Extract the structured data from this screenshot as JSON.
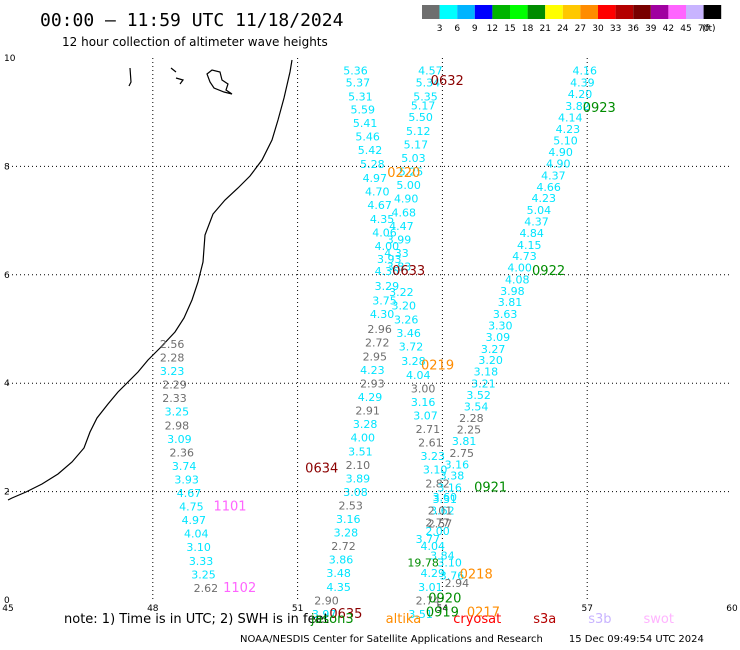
{
  "header": {
    "title": "00:00 – 11:59 UTC 11/18/2024",
    "subtitle": "12 hour collection of altimeter wave heights"
  },
  "legend": {
    "unit": "(ft)",
    "ticks": [
      "3",
      "6",
      "9",
      "12",
      "15",
      "18",
      "21",
      "24",
      "27",
      "30",
      "33",
      "36",
      "39",
      "42",
      "45",
      "70"
    ],
    "colors": [
      "#6e6e6e",
      "#00ffff",
      "#00b4ff",
      "#0000ff",
      "#00b400",
      "#00ff00",
      "#008c00",
      "#ffff00",
      "#ffc800",
      "#ff8c00",
      "#ff0000",
      "#b40000",
      "#780000",
      "#a000a0",
      "#ff64ff",
      "#c8b4ff",
      "#000000"
    ]
  },
  "axes": {
    "x_ticks": [
      "45",
      "48",
      "51",
      "54",
      "57",
      "60"
    ],
    "y_ticks": [
      "0",
      "2",
      "4",
      "6",
      "8",
      "10"
    ],
    "x_range": [
      45,
      60
    ],
    "y_range": [
      0,
      10
    ]
  },
  "colors": {
    "gray": "#6e6e6e",
    "cyan": "#00e5ff",
    "green": "#008c00",
    "darkred": "#8b0000",
    "orange": "#ff8c00",
    "pink": "#ff64ff",
    "lavender": "#b4a0ff"
  },
  "labels": [
    {
      "t": "5.36",
      "x": 52.2,
      "y": 9.7,
      "c": "cyan"
    },
    {
      "t": "5.37",
      "x": 52.25,
      "y": 9.47,
      "c": "cyan"
    },
    {
      "t": "5.31",
      "x": 52.3,
      "y": 9.22,
      "c": "cyan"
    },
    {
      "t": "5.59",
      "x": 52.35,
      "y": 8.98,
      "c": "cyan"
    },
    {
      "t": "5.41",
      "x": 52.4,
      "y": 8.73,
      "c": "cyan"
    },
    {
      "t": "5.46",
      "x": 52.45,
      "y": 8.48,
      "c": "cyan"
    },
    {
      "t": "5.42",
      "x": 52.5,
      "y": 8.23,
      "c": "cyan"
    },
    {
      "t": "5.28",
      "x": 52.55,
      "y": 7.97,
      "c": "cyan"
    },
    {
      "t": "4.97",
      "x": 52.6,
      "y": 7.71,
      "c": "cyan"
    },
    {
      "t": "4.70",
      "x": 52.65,
      "y": 7.46,
      "c": "cyan"
    },
    {
      "t": "4.67",
      "x": 52.7,
      "y": 7.21,
      "c": "cyan"
    },
    {
      "t": "4.35",
      "x": 52.75,
      "y": 6.96,
      "c": "cyan"
    },
    {
      "t": "4.06",
      "x": 52.8,
      "y": 6.71,
      "c": "cyan"
    },
    {
      "t": "4.00",
      "x": 52.85,
      "y": 6.46,
      "c": "cyan"
    },
    {
      "t": "3.93",
      "x": 52.9,
      "y": 6.22,
      "c": "cyan"
    },
    {
      "t": "4.36",
      "x": 52.85,
      "y": 6.0,
      "c": "cyan"
    },
    {
      "t": "3.29",
      "x": 52.85,
      "y": 5.72,
      "c": "cyan"
    },
    {
      "t": "3.75",
      "x": 52.8,
      "y": 5.45,
      "c": "cyan"
    },
    {
      "t": "4.30",
      "x": 52.75,
      "y": 5.2,
      "c": "cyan"
    },
    {
      "t": "2.96",
      "x": 52.7,
      "y": 4.93,
      "c": "gray"
    },
    {
      "t": "2.72",
      "x": 52.65,
      "y": 4.68,
      "c": "gray"
    },
    {
      "t": "2.95",
      "x": 52.6,
      "y": 4.42,
      "c": "gray"
    },
    {
      "t": "4.23",
      "x": 52.55,
      "y": 4.17,
      "c": "cyan"
    },
    {
      "t": "2.93",
      "x": 52.55,
      "y": 3.92,
      "c": "gray"
    },
    {
      "t": "4.29",
      "x": 52.5,
      "y": 3.67,
      "c": "cyan"
    },
    {
      "t": "2.91",
      "x": 52.45,
      "y": 3.42,
      "c": "gray"
    },
    {
      "t": "3.28",
      "x": 52.4,
      "y": 3.17,
      "c": "cyan"
    },
    {
      "t": "4.00",
      "x": 52.35,
      "y": 2.92,
      "c": "cyan"
    },
    {
      "t": "3.51",
      "x": 52.3,
      "y": 2.67,
      "c": "cyan"
    },
    {
      "t": "2.10",
      "x": 52.25,
      "y": 2.42,
      "c": "gray"
    },
    {
      "t": "3.89",
      "x": 52.25,
      "y": 2.17,
      "c": "cyan"
    },
    {
      "t": "3.08",
      "x": 52.2,
      "y": 1.92,
      "c": "cyan"
    },
    {
      "t": "2.53",
      "x": 52.1,
      "y": 1.67,
      "c": "gray"
    },
    {
      "t": "3.16",
      "x": 52.05,
      "y": 1.42,
      "c": "cyan"
    },
    {
      "t": "3.28",
      "x": 52.0,
      "y": 1.17,
      "c": "cyan"
    },
    {
      "t": "2.72",
      "x": 51.95,
      "y": 0.92,
      "c": "gray"
    },
    {
      "t": "3.86",
      "x": 51.9,
      "y": 0.67,
      "c": "cyan"
    },
    {
      "t": "3.48",
      "x": 51.85,
      "y": 0.42,
      "c": "cyan"
    },
    {
      "t": "4.35",
      "x": 51.85,
      "y": 0.17,
      "c": "cyan"
    },
    {
      "t": "2.90",
      "x": 51.6,
      "y": -0.08,
      "c": "gray"
    },
    {
      "t": "3.97",
      "x": 51.55,
      "y": -0.33,
      "c": "cyan"
    },
    {
      "t": "0635",
      "x": 52.0,
      "y": -0.33,
      "c": "darkred",
      "big": true
    },
    {
      "t": "4.57",
      "x": 53.75,
      "y": 9.7,
      "c": "cyan"
    },
    {
      "t": "5.34",
      "x": 53.7,
      "y": 9.47,
      "c": "cyan"
    },
    {
      "t": "5.35",
      "x": 53.65,
      "y": 9.22,
      "c": "cyan"
    },
    {
      "t": "5.17",
      "x": 53.6,
      "y": 9.05,
      "c": "cyan"
    },
    {
      "t": "5.50",
      "x": 53.55,
      "y": 8.84,
      "c": "cyan"
    },
    {
      "t": "5.12",
      "x": 53.5,
      "y": 8.58,
      "c": "cyan"
    },
    {
      "t": "5.17",
      "x": 53.45,
      "y": 8.33,
      "c": "cyan"
    },
    {
      "t": "5.03",
      "x": 53.4,
      "y": 8.08,
      "c": "cyan"
    },
    {
      "t": "5.25",
      "x": 53.35,
      "y": 7.83,
      "c": "cyan"
    },
    {
      "t": "5.00",
      "x": 53.3,
      "y": 7.58,
      "c": "cyan"
    },
    {
      "t": "4.90",
      "x": 53.25,
      "y": 7.33,
      "c": "cyan"
    },
    {
      "t": "4.68",
      "x": 53.2,
      "y": 7.08,
      "c": "cyan"
    },
    {
      "t": "4.47",
      "x": 53.15,
      "y": 6.83,
      "c": "cyan"
    },
    {
      "t": "3.99",
      "x": 53.1,
      "y": 6.58,
      "c": "cyan"
    },
    {
      "t": "4.33",
      "x": 53.05,
      "y": 6.33,
      "c": "cyan"
    },
    {
      "t": "3.83",
      "x": 53.1,
      "y": 6.08,
      "c": "cyan"
    },
    {
      "t": "3.22",
      "x": 53.15,
      "y": 5.61,
      "c": "cyan"
    },
    {
      "t": "3.20",
      "x": 53.2,
      "y": 5.36,
      "c": "cyan"
    },
    {
      "t": "3.26",
      "x": 53.25,
      "y": 5.1,
      "c": "cyan"
    },
    {
      "t": "3.46",
      "x": 53.3,
      "y": 4.85,
      "c": "cyan"
    },
    {
      "t": "3.72",
      "x": 53.35,
      "y": 4.6,
      "c": "cyan"
    },
    {
      "t": "3.28",
      "x": 53.4,
      "y": 4.34,
      "c": "cyan"
    },
    {
      "t": "4.04",
      "x": 53.5,
      "y": 4.08,
      "c": "cyan"
    },
    {
      "t": "3.00",
      "x": 53.6,
      "y": 3.83,
      "c": "gray"
    },
    {
      "t": "3.16",
      "x": 53.6,
      "y": 3.58,
      "c": "cyan"
    },
    {
      "t": "3.07",
      "x": 53.65,
      "y": 3.33,
      "c": "cyan"
    },
    {
      "t": "2.71",
      "x": 53.7,
      "y": 3.08,
      "c": "gray"
    },
    {
      "t": "2.61",
      "x": 53.75,
      "y": 2.83,
      "c": "gray"
    },
    {
      "t": "3.23",
      "x": 53.8,
      "y": 2.58,
      "c": "cyan"
    },
    {
      "t": "3.10",
      "x": 53.85,
      "y": 2.33,
      "c": "cyan"
    },
    {
      "t": "2.82",
      "x": 53.9,
      "y": 2.08,
      "c": "gray"
    },
    {
      "t": "3.60",
      "x": 54.05,
      "y": 1.83,
      "c": "cyan"
    },
    {
      "t": "3.62",
      "x": 54.0,
      "y": 1.58,
      "c": "cyan"
    },
    {
      "t": "2.57",
      "x": 53.95,
      "y": 1.34,
      "c": "gray"
    },
    {
      "t": "2.00",
      "x": 53.9,
      "y": 1.2,
      "c": "cyan"
    },
    {
      "t": "3.77",
      "x": 53.7,
      "y": 1.05,
      "c": "cyan"
    },
    {
      "t": "4.04",
      "x": 53.8,
      "y": 0.92,
      "c": "cyan"
    },
    {
      "t": "3.84",
      "x": 54.0,
      "y": 0.75,
      "c": "cyan"
    },
    {
      "t": "19.78",
      "x": 53.6,
      "y": 0.62,
      "c": "green"
    },
    {
      "t": "3.10",
      "x": 54.15,
      "y": 0.62,
      "c": "cyan"
    },
    {
      "t": "4.29",
      "x": 53.8,
      "y": 0.42,
      "c": "cyan"
    },
    {
      "t": "3.76",
      "x": 54.2,
      "y": 0.38,
      "c": "cyan"
    },
    {
      "t": "3.01",
      "x": 53.75,
      "y": 0.17,
      "c": "cyan"
    },
    {
      "t": "2.94",
      "x": 54.3,
      "y": 0.24,
      "c": "gray"
    },
    {
      "t": "2.74",
      "x": 53.7,
      "y": -0.08,
      "c": "gray"
    },
    {
      "t": "3.51",
      "x": 53.55,
      "y": -0.33,
      "c": "cyan"
    },
    {
      "t": "0632",
      "x": 54.1,
      "y": 9.5,
      "c": "darkred",
      "big": true
    },
    {
      "t": "0220",
      "x": 53.2,
      "y": 7.8,
      "c": "orange",
      "big": true
    },
    {
      "t": "0633",
      "x": 53.3,
      "y": 6.0,
      "c": "darkred",
      "big": true
    },
    {
      "t": "0219",
      "x": 53.9,
      "y": 4.25,
      "c": "orange",
      "big": true
    },
    {
      "t": "0634",
      "x": 51.5,
      "y": 2.35,
      "c": "darkred",
      "big": true
    },
    {
      "t": "0218",
      "x": 54.7,
      "y": 0.4,
      "c": "orange",
      "big": true
    },
    {
      "t": "0920",
      "x": 54.05,
      "y": -0.05,
      "c": "green",
      "big": true
    },
    {
      "t": "0919",
      "x": 54.0,
      "y": -0.3,
      "c": "green",
      "big": true
    },
    {
      "t": "0217",
      "x": 54.85,
      "y": -0.3,
      "c": "orange",
      "big": true
    },
    {
      "t": "4.16",
      "x": 56.95,
      "y": 9.7,
      "c": "cyan"
    },
    {
      "t": "4.39",
      "x": 56.9,
      "y": 9.47,
      "c": "cyan"
    },
    {
      "t": "4.20",
      "x": 56.85,
      "y": 9.26,
      "c": "cyan"
    },
    {
      "t": "3.82",
      "x": 56.8,
      "y": 9.04,
      "c": "cyan"
    },
    {
      "t": "4.14",
      "x": 56.65,
      "y": 8.83,
      "c": "cyan"
    },
    {
      "t": "4.23",
      "x": 56.6,
      "y": 8.62,
      "c": "cyan"
    },
    {
      "t": "5.10",
      "x": 56.55,
      "y": 8.4,
      "c": "cyan"
    },
    {
      "t": "4.90",
      "x": 56.45,
      "y": 8.19,
      "c": "cyan"
    },
    {
      "t": "4.90",
      "x": 56.4,
      "y": 7.98,
      "c": "cyan"
    },
    {
      "t": "4.37",
      "x": 56.3,
      "y": 7.76,
      "c": "cyan"
    },
    {
      "t": "4.66",
      "x": 56.2,
      "y": 7.55,
      "c": "cyan"
    },
    {
      "t": "4.23",
      "x": 56.1,
      "y": 7.34,
      "c": "cyan"
    },
    {
      "t": "5.04",
      "x": 56.0,
      "y": 7.12,
      "c": "cyan"
    },
    {
      "t": "4.37",
      "x": 55.95,
      "y": 6.91,
      "c": "cyan"
    },
    {
      "t": "4.84",
      "x": 55.85,
      "y": 6.7,
      "c": "cyan"
    },
    {
      "t": "4.15",
      "x": 55.8,
      "y": 6.48,
      "c": "cyan"
    },
    {
      "t": "4.73",
      "x": 55.7,
      "y": 6.27,
      "c": "cyan"
    },
    {
      "t": "4.00",
      "x": 55.6,
      "y": 6.06,
      "c": "cyan"
    },
    {
      "t": "4.08",
      "x": 55.55,
      "y": 5.84,
      "c": "cyan"
    },
    {
      "t": "3.98",
      "x": 55.45,
      "y": 5.63,
      "c": "cyan"
    },
    {
      "t": "3.81",
      "x": 55.4,
      "y": 5.42,
      "c": "cyan"
    },
    {
      "t": "3.63",
      "x": 55.3,
      "y": 5.2,
      "c": "cyan"
    },
    {
      "t": "3.30",
      "x": 55.2,
      "y": 4.99,
      "c": "cyan"
    },
    {
      "t": "3.09",
      "x": 55.15,
      "y": 4.78,
      "c": "cyan"
    },
    {
      "t": "3.27",
      "x": 55.05,
      "y": 4.56,
      "c": "cyan"
    },
    {
      "t": "3.20",
      "x": 55.0,
      "y": 4.35,
      "c": "cyan"
    },
    {
      "t": "3.18",
      "x": 54.9,
      "y": 4.14,
      "c": "cyan"
    },
    {
      "t": "3.21",
      "x": 54.85,
      "y": 3.92,
      "c": "cyan"
    },
    {
      "t": "3.52",
      "x": 54.75,
      "y": 3.71,
      "c": "cyan"
    },
    {
      "t": "3.54",
      "x": 54.7,
      "y": 3.5,
      "c": "cyan"
    },
    {
      "t": "2.28",
      "x": 54.6,
      "y": 3.28,
      "c": "gray"
    },
    {
      "t": "2.25",
      "x": 54.55,
      "y": 3.07,
      "c": "gray"
    },
    {
      "t": "3.81",
      "x": 54.45,
      "y": 2.86,
      "c": "cyan"
    },
    {
      "t": "2.75",
      "x": 54.4,
      "y": 2.64,
      "c": "gray"
    },
    {
      "t": "3.16",
      "x": 54.3,
      "y": 2.43,
      "c": "cyan"
    },
    {
      "t": "3.38",
      "x": 54.2,
      "y": 2.22,
      "c": "cyan"
    },
    {
      "t": "3.16",
      "x": 54.15,
      "y": 2.0,
      "c": "cyan"
    },
    {
      "t": "3.31",
      "x": 54.05,
      "y": 1.79,
      "c": "cyan"
    },
    {
      "t": "2.01",
      "x": 53.95,
      "y": 1.58,
      "c": "gray"
    },
    {
      "t": "2.77",
      "x": 53.9,
      "y": 1.36,
      "c": "gray"
    },
    {
      "t": "0923",
      "x": 57.25,
      "y": 9.0,
      "c": "green",
      "big": true
    },
    {
      "t": "0922",
      "x": 56.2,
      "y": 6.0,
      "c": "green",
      "big": true
    },
    {
      "t": "0921",
      "x": 55.0,
      "y": 2.0,
      "c": "green",
      "big": true
    },
    {
      "t": "2.56",
      "x": 48.4,
      "y": 4.65,
      "c": "gray"
    },
    {
      "t": "2.28",
      "x": 48.4,
      "y": 4.4,
      "c": "gray"
    },
    {
      "t": "3.23",
      "x": 48.4,
      "y": 4.15,
      "c": "cyan"
    },
    {
      "t": "2.29",
      "x": 48.45,
      "y": 3.9,
      "c": "gray"
    },
    {
      "t": "2.33",
      "x": 48.45,
      "y": 3.65,
      "c": "gray"
    },
    {
      "t": "3.25",
      "x": 48.5,
      "y": 3.4,
      "c": "cyan"
    },
    {
      "t": "2.98",
      "x": 48.5,
      "y": 3.15,
      "c": "gray"
    },
    {
      "t": "3.09",
      "x": 48.55,
      "y": 2.9,
      "c": "cyan"
    },
    {
      "t": "2.36",
      "x": 48.6,
      "y": 2.65,
      "c": "gray"
    },
    {
      "t": "3.74",
      "x": 48.65,
      "y": 2.4,
      "c": "cyan"
    },
    {
      "t": "3.93",
      "x": 48.7,
      "y": 2.15,
      "c": "cyan"
    },
    {
      "t": "4.67",
      "x": 48.75,
      "y": 1.9,
      "c": "cyan"
    },
    {
      "t": "4.75",
      "x": 48.8,
      "y": 1.65,
      "c": "cyan"
    },
    {
      "t": "4.97",
      "x": 48.85,
      "y": 1.4,
      "c": "cyan"
    },
    {
      "t": "4.04",
      "x": 48.9,
      "y": 1.15,
      "c": "cyan"
    },
    {
      "t": "3.10",
      "x": 48.95,
      "y": 0.9,
      "c": "cyan"
    },
    {
      "t": "3.33",
      "x": 49.0,
      "y": 0.65,
      "c": "cyan"
    },
    {
      "t": "3.25",
      "x": 49.05,
      "y": 0.4,
      "c": "cyan"
    },
    {
      "t": "2.62",
      "x": 49.1,
      "y": 0.15,
      "c": "gray"
    },
    {
      "t": "1101",
      "x": 49.6,
      "y": 1.65,
      "c": "pink",
      "big": true
    },
    {
      "t": "1102",
      "x": 49.8,
      "y": 0.15,
      "c": "pink",
      "big": true
    }
  ],
  "footer": {
    "note_prefix": "note:  1) Time is in UTC; 2) SWH is in feet",
    "satellites": [
      {
        "name": "jason3",
        "color": "#008c00"
      },
      {
        "name": "altika",
        "color": "#ff8c00"
      },
      {
        "name": "cryosat",
        "color": "#ff0000"
      },
      {
        "name": "s3a",
        "color": "#b40000"
      },
      {
        "name": "s3b",
        "color": "#c8b4ff"
      },
      {
        "name": "swot",
        "color": "#ffb4ff"
      }
    ],
    "credit": "NOAA/NESDIS Center for Satellite Applications and Research",
    "generated": "15 Dec 09:49:54 UTC 2024"
  }
}
